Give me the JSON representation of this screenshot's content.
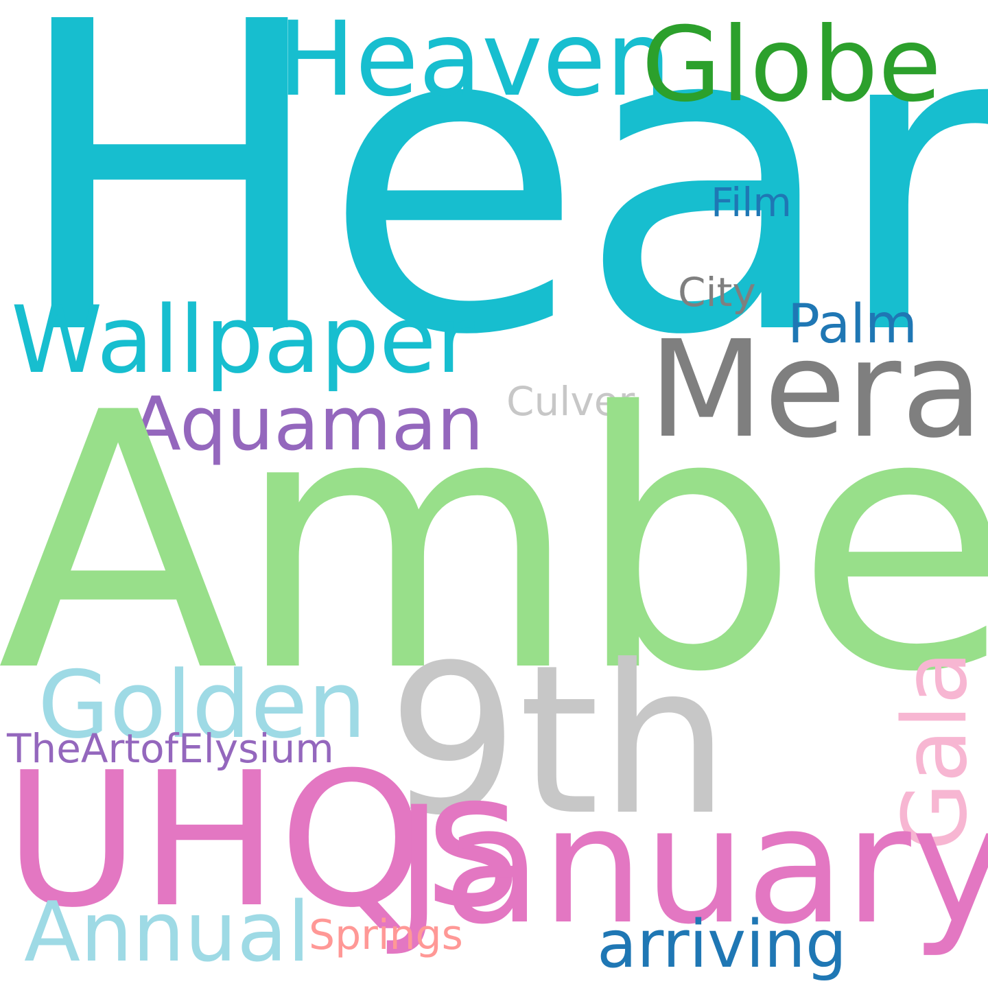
{
  "word_cloud": {
    "background": "#ffffff",
    "words": {
      "heard": {
        "text": "Heard",
        "color": "#17becf"
      },
      "heaven": {
        "text": "Heaven",
        "color": "#17becf"
      },
      "globe": {
        "text": "Globe",
        "color": "#2ca02c"
      },
      "film": {
        "text": "Film",
        "color": "#1f77b4"
      },
      "city": {
        "text": "City",
        "color": "#7f7f7f"
      },
      "wallpaper": {
        "text": "Wallpaper",
        "color": "#17becf"
      },
      "palm": {
        "text": "Palm",
        "color": "#1f77b4"
      },
      "mera": {
        "text": "Mera",
        "color": "#7f7f7f"
      },
      "culver": {
        "text": "Culver",
        "color": "#c7c7c7"
      },
      "aquaman": {
        "text": "Aquaman",
        "color": "#9467bd"
      },
      "amber": {
        "text": "Amber",
        "color": "#98df8a"
      },
      "golden": {
        "text": "Golden",
        "color": "#9edae5"
      },
      "ninth": {
        "text": "9th",
        "color": "#c7c7c7"
      },
      "gala": {
        "text": "Gala",
        "color": "#f7b6d2"
      },
      "elysium": {
        "text": "TheArtofElysium",
        "color": "#9467bd"
      },
      "uhqs": {
        "text": "UHQs",
        "color": "#e377c2"
      },
      "january": {
        "text": "January",
        "color": "#e377c2"
      },
      "annual": {
        "text": "Annual",
        "color": "#9edae5"
      },
      "springs": {
        "text": "Springs",
        "color": "#ff9896"
      },
      "arriving": {
        "text": "arriving",
        "color": "#1f77b4"
      }
    }
  }
}
